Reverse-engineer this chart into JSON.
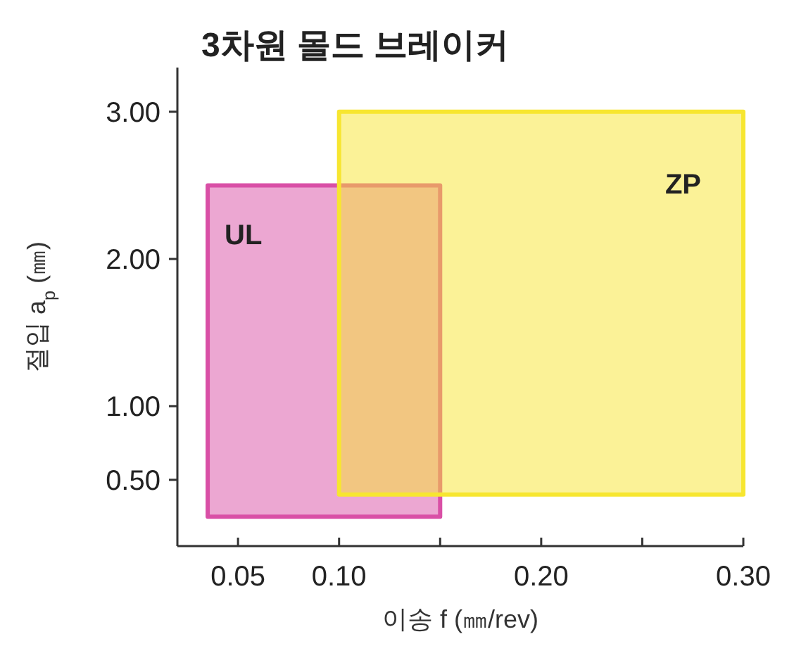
{
  "chart_data": {
    "type": "area",
    "title": "3차원 몰드 브레이커",
    "xlabel": "이송 f (㎜/rev)",
    "ylabel": "절입 a$_{p}$ (㎜)",
    "xlim": [
      0.02,
      0.3
    ],
    "ylim": [
      0.05,
      3.3
    ],
    "xticks": [
      {
        "value": 0.05,
        "label": "0.05"
      },
      {
        "value": 0.1,
        "label": "0.10"
      },
      {
        "value": 0.15,
        "label": null
      },
      {
        "value": 0.2,
        "label": "0.20"
      },
      {
        "value": 0.25,
        "label": null
      },
      {
        "value": 0.3,
        "label": "0.30"
      }
    ],
    "yticks": [
      {
        "value": 0.5,
        "label": "0.50"
      },
      {
        "value": 1,
        "label": "1.00"
      },
      {
        "value": 2,
        "label": "2.00"
      },
      {
        "value": 3,
        "label": "3.00"
      }
    ],
    "series": [
      {
        "name": "UL",
        "color": "#d94fa6",
        "x": [
          0.035,
          0.15,
          0.15,
          0.035,
          0.035
        ],
        "values": [
          0.25,
          0.25,
          2.5,
          2.5,
          0.25
        ]
      },
      {
        "name": "ZP",
        "color": "#f7e630",
        "x": [
          0.1,
          0.3,
          0.3,
          0.1,
          0.1
        ],
        "values": [
          0.4,
          0.4,
          3.0,
          3.0,
          0.4
        ]
      }
    ]
  }
}
